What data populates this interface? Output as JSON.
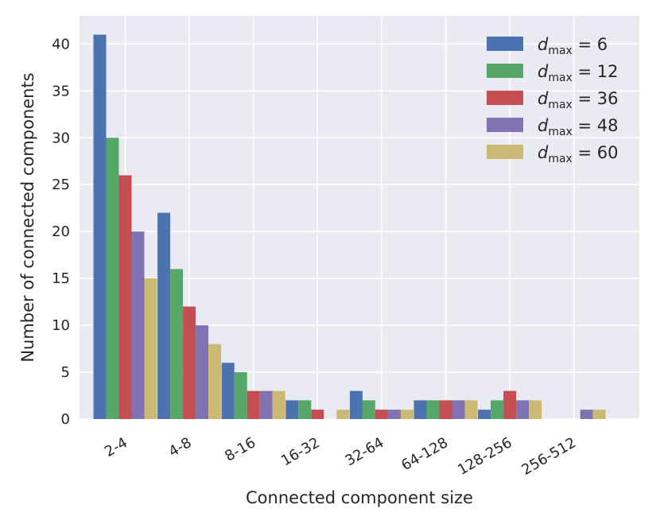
{
  "chart_data": {
    "type": "bar",
    "title": "",
    "xlabel": "Connected component size",
    "ylabel": "Number of connected components",
    "categories": [
      "2-4",
      "4-8",
      "8-16",
      "16-32",
      "32-64",
      "64-128",
      "128-256",
      "256-512"
    ],
    "ylim": [
      0,
      43
    ],
    "yticks": [
      0,
      5,
      10,
      15,
      20,
      25,
      30,
      35,
      40
    ],
    "grid": true,
    "legend_position": "top-right",
    "series": [
      {
        "name": "d_max = 6",
        "legend": {
          "var": "d",
          "sub": "max",
          "rest": " = 6"
        },
        "color": "#4C72B0",
        "values": [
          41,
          22,
          6,
          2,
          3,
          2,
          1,
          0
        ]
      },
      {
        "name": "d_max = 12",
        "legend": {
          "var": "d",
          "sub": "max",
          "rest": " = 12"
        },
        "color": "#55A868",
        "values": [
          30,
          16,
          5,
          2,
          2,
          2,
          2,
          0
        ]
      },
      {
        "name": "d_max = 36",
        "legend": {
          "var": "d",
          "sub": "max",
          "rest": " = 36"
        },
        "color": "#C44E52",
        "values": [
          26,
          12,
          3,
          1,
          1,
          2,
          3,
          0
        ]
      },
      {
        "name": "d_max = 48",
        "legend": {
          "var": "d",
          "sub": "max",
          "rest": " = 48"
        },
        "color": "#8172B2",
        "values": [
          20,
          10,
          3,
          0,
          1,
          2,
          2,
          1
        ]
      },
      {
        "name": "d_max = 60",
        "legend": {
          "var": "d",
          "sub": "max",
          "rest": " = 60"
        },
        "color": "#CCB974",
        "values": [
          15,
          8,
          3,
          1,
          1,
          2,
          2,
          1
        ]
      }
    ],
    "plot_background": "#EAEAF2",
    "grid_color": "#FFFFFF"
  }
}
